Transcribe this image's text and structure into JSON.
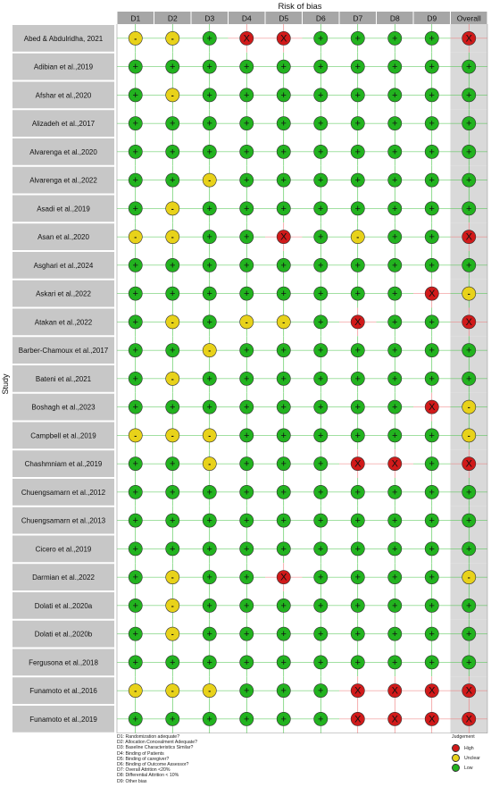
{
  "chart_data": {
    "type": "table",
    "title": "Risk of bias",
    "ylabel": "Study",
    "columns": [
      "D1",
      "D2",
      "D3",
      "D4",
      "D5",
      "D6",
      "D7",
      "D8",
      "D9",
      "Overall"
    ],
    "rows": [
      {
        "study": "Abed & Abdulridha, 2021",
        "judgements": [
          "?",
          "?",
          "+",
          "X",
          "X",
          "+",
          "+",
          "+",
          "+",
          "X"
        ]
      },
      {
        "study": "Adibian et al.,2019",
        "judgements": [
          "+",
          "+",
          "+",
          "+",
          "+",
          "+",
          "+",
          "+",
          "+",
          "+"
        ]
      },
      {
        "study": "Afshar et al.,2020",
        "judgements": [
          "+",
          "?",
          "+",
          "+",
          "+",
          "+",
          "+",
          "+",
          "+",
          "+"
        ]
      },
      {
        "study": "Alizadeh et al.,2017",
        "judgements": [
          "+",
          "+",
          "+",
          "+",
          "+",
          "+",
          "+",
          "+",
          "+",
          "+"
        ]
      },
      {
        "study": "Alvarenga et al.,2020",
        "judgements": [
          "+",
          "+",
          "+",
          "+",
          "+",
          "+",
          "+",
          "+",
          "+",
          "+"
        ]
      },
      {
        "study": "Alvarenga et al.,2022",
        "judgements": [
          "+",
          "+",
          "?",
          "+",
          "+",
          "+",
          "+",
          "+",
          "+",
          "+"
        ]
      },
      {
        "study": "Asadi et al.,2019",
        "judgements": [
          "+",
          "?",
          "+",
          "+",
          "+",
          "+",
          "+",
          "+",
          "+",
          "+"
        ]
      },
      {
        "study": "Asan et al.,2020",
        "judgements": [
          "?",
          "?",
          "+",
          "+",
          "X",
          "+",
          "?",
          "+",
          "+",
          "X"
        ]
      },
      {
        "study": "Asghari et al.,2024",
        "judgements": [
          "+",
          "+",
          "+",
          "+",
          "+",
          "+",
          "+",
          "+",
          "+",
          "+"
        ]
      },
      {
        "study": "Askari et al.,2022",
        "judgements": [
          "+",
          "+",
          "+",
          "+",
          "+",
          "+",
          "+",
          "+",
          "X",
          "?"
        ]
      },
      {
        "study": "Atakan et al.,2022",
        "judgements": [
          "+",
          "?",
          "+",
          "?",
          "?",
          "+",
          "X",
          "+",
          "+",
          "X"
        ]
      },
      {
        "study": "Barber-Chamoux et al.,2017",
        "judgements": [
          "+",
          "+",
          "?",
          "+",
          "+",
          "+",
          "+",
          "+",
          "+",
          "+"
        ]
      },
      {
        "study": "Bateni et al.,2021",
        "judgements": [
          "+",
          "?",
          "+",
          "+",
          "+",
          "+",
          "+",
          "+",
          "+",
          "+"
        ]
      },
      {
        "study": "Boshagh et al.,2023",
        "judgements": [
          "+",
          "+",
          "+",
          "+",
          "+",
          "+",
          "+",
          "+",
          "X",
          "?"
        ]
      },
      {
        "study": "Campbell et al.,2019",
        "judgements": [
          "?",
          "?",
          "?",
          "+",
          "+",
          "+",
          "+",
          "+",
          "+",
          "?"
        ]
      },
      {
        "study": "Chashmniam et al.,2019",
        "judgements": [
          "+",
          "+",
          "?",
          "+",
          "+",
          "+",
          "X",
          "X",
          "+",
          "X"
        ]
      },
      {
        "study": "Chuengsamarn et al.,2012",
        "judgements": [
          "+",
          "+",
          "+",
          "+",
          "+",
          "+",
          "+",
          "+",
          "+",
          "+"
        ]
      },
      {
        "study": "Chuengsamarn et al.,2013",
        "judgements": [
          "+",
          "+",
          "+",
          "+",
          "+",
          "+",
          "+",
          "+",
          "+",
          "+"
        ]
      },
      {
        "study": "Cicero et al.,2019",
        "judgements": [
          "+",
          "+",
          "+",
          "+",
          "+",
          "+",
          "+",
          "+",
          "+",
          "+"
        ]
      },
      {
        "study": "Darmian et al.,2022",
        "judgements": [
          "+",
          "?",
          "+",
          "+",
          "X",
          "+",
          "+",
          "+",
          "+",
          "?"
        ]
      },
      {
        "study": "Dolati et al.,2020a",
        "judgements": [
          "+",
          "?",
          "+",
          "+",
          "+",
          "+",
          "+",
          "+",
          "+",
          "+"
        ]
      },
      {
        "study": "Dolati et al.,2020b",
        "judgements": [
          "+",
          "?",
          "+",
          "+",
          "+",
          "+",
          "+",
          "+",
          "+",
          "+"
        ]
      },
      {
        "study": "Fergusona et al.,2018",
        "judgements": [
          "+",
          "+",
          "+",
          "+",
          "+",
          "+",
          "+",
          "+",
          "+",
          "+"
        ]
      },
      {
        "study": "Funamoto et al.,2016",
        "judgements": [
          "?",
          "?",
          "?",
          "+",
          "+",
          "+",
          "X",
          "X",
          "X",
          "X"
        ]
      },
      {
        "study": "Funamoto et al.,2019",
        "judgements": [
          "+",
          "+",
          "+",
          "+",
          "+",
          "+",
          "X",
          "X",
          "X",
          "X"
        ]
      }
    ],
    "domain_definitions": [
      "D1: Randomization adequate?",
      "D2: Allocation Concealment Adequate?",
      "D3: Baseline Characteristics Similar?",
      "D4: Binding of Patients",
      "D5: Binding of caregiver?",
      "D6: Binding of Outcome Assessor?",
      "D7: Overall Attrition <20%",
      "D8: Differential Attrition < 10%",
      "D9: Other bias"
    ],
    "legend": {
      "title": "Judgement",
      "placement": "bottom-right",
      "items": [
        {
          "symbol": "X",
          "label": "High",
          "color": "#d11a1a"
        },
        {
          "symbol": "?",
          "label": "Unclear",
          "color": "#e8d21a"
        },
        {
          "symbol": "+",
          "label": "Low",
          "color": "#22b31f"
        }
      ]
    },
    "colors": {
      "header_bg": "#a6a6a6",
      "study_bg": "#c7c7c7",
      "overall_bg": "#d9d9d9",
      "row_bg": "#ffffff",
      "grid_green": "#44c244",
      "grid_red": "#ee7777"
    }
  }
}
